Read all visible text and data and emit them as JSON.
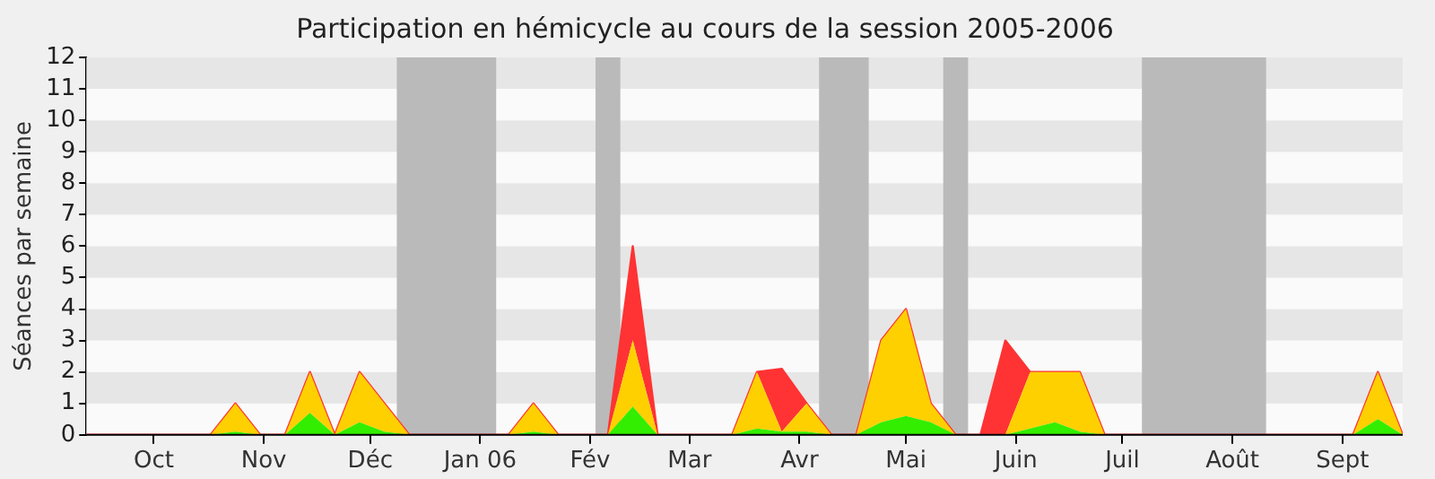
{
  "chart_data": {
    "type": "area",
    "title": "Participation en hémicycle au cours de la session 2005-2006",
    "ylabel": "Séances par semaine",
    "stacked": true,
    "legend": false,
    "x": [
      "2005-09-12",
      "2005-09-19",
      "2005-09-26",
      "2005-10-03",
      "2005-10-10",
      "2005-10-17",
      "2005-10-24",
      "2005-10-31",
      "2005-11-07",
      "2005-11-14",
      "2005-11-21",
      "2005-11-28",
      "2005-12-05",
      "2005-12-12",
      "2005-12-19",
      "2005-12-26",
      "2006-01-02",
      "2006-01-09",
      "2006-01-16",
      "2006-01-23",
      "2006-01-30",
      "2006-02-06",
      "2006-02-13",
      "2006-02-20",
      "2006-02-27",
      "2006-03-06",
      "2006-03-13",
      "2006-03-20",
      "2006-03-27",
      "2006-04-03",
      "2006-04-10",
      "2006-04-17",
      "2006-04-24",
      "2006-05-01",
      "2006-05-08",
      "2006-05-15",
      "2006-05-22",
      "2006-05-29",
      "2006-06-05",
      "2006-06-12",
      "2006-06-19",
      "2006-06-26",
      "2006-07-03",
      "2006-07-10",
      "2006-07-17",
      "2006-07-24",
      "2006-07-31",
      "2006-08-07",
      "2006-08-14",
      "2006-08-21",
      "2006-08-28",
      "2006-09-04",
      "2006-09-11",
      "2006-09-18"
    ],
    "series": [
      {
        "color": "#33ee00",
        "values": [
          0,
          0,
          0,
          0,
          0,
          0,
          0.1,
          0,
          0,
          0.7,
          0,
          0.4,
          0.1,
          0,
          0,
          0,
          0,
          0,
          0.1,
          0,
          0,
          0,
          0.9,
          0,
          0,
          0,
          0,
          0.2,
          0.1,
          0.1,
          0,
          0,
          0.4,
          0.6,
          0.4,
          0,
          0,
          0,
          0.2,
          0.4,
          0.1,
          0,
          0,
          0,
          0,
          0,
          0,
          0,
          0,
          0,
          0,
          0,
          0.5,
          0
        ]
      },
      {
        "color": "#ffd000",
        "values": [
          0,
          0,
          0,
          0,
          0,
          0,
          0.9,
          0,
          0,
          1.3,
          0,
          1.6,
          0.9,
          0,
          0,
          0,
          0,
          0,
          0.9,
          0,
          0,
          0,
          2.1,
          0,
          0,
          0,
          0,
          1.8,
          0,
          0.9,
          0,
          0,
          2.6,
          3.4,
          0.6,
          0,
          0,
          0,
          1.8,
          1.6,
          1.9,
          0,
          0,
          0,
          0,
          0,
          0,
          0,
          0,
          0,
          0,
          0,
          1.5,
          0
        ]
      },
      {
        "color": "#ff3333",
        "values": [
          0,
          0,
          0,
          0,
          0,
          0,
          0,
          0,
          0,
          0,
          0,
          0,
          0,
          0,
          0,
          0,
          0,
          0,
          0,
          0,
          0,
          0,
          3,
          0,
          0,
          0,
          0,
          0,
          2,
          0,
          0,
          0,
          0,
          0,
          0,
          0,
          0,
          3,
          0,
          0,
          0,
          0,
          0,
          0,
          0,
          0,
          0,
          0,
          0,
          0,
          0,
          0,
          0,
          0
        ]
      }
    ],
    "xlim": [
      "2005-09-12",
      "2006-09-18"
    ],
    "xticks": [
      {
        "value": "2005-10-01",
        "label": "Oct"
      },
      {
        "value": "2005-11-01",
        "label": "Nov"
      },
      {
        "value": "2005-12-01",
        "label": "Déc"
      },
      {
        "value": "2006-01-01",
        "label": "Jan 06"
      },
      {
        "value": "2006-02-01",
        "label": "Fév"
      },
      {
        "value": "2006-03-01",
        "label": "Mar"
      },
      {
        "value": "2006-04-01",
        "label": "Avr"
      },
      {
        "value": "2006-05-01",
        "label": "Mai"
      },
      {
        "value": "2006-06-01",
        "label": "Juin"
      },
      {
        "value": "2006-07-01",
        "label": "Juil"
      },
      {
        "value": "2006-08-01",
        "label": "Août"
      },
      {
        "value": "2006-09-01",
        "label": "Sept"
      }
    ],
    "ylim": [
      0,
      12
    ],
    "yticks": [
      0,
      1,
      2,
      3,
      4,
      5,
      6,
      7,
      8,
      9,
      10,
      11,
      12
    ],
    "bands": [
      {
        "axis": "x",
        "from": "2005-12-08T12:00",
        "to": "2006-01-05T12:00",
        "color": "#bababa"
      },
      {
        "axis": "x",
        "from": "2006-02-02T12:00",
        "to": "2006-02-09T12:00",
        "color": "#bababa"
      },
      {
        "axis": "x",
        "from": "2006-04-06T12:00",
        "to": "2006-04-20T12:00",
        "color": "#bababa"
      },
      {
        "axis": "x",
        "from": "2006-05-11T12:00",
        "to": "2006-05-18T12:00",
        "color": "#bababa"
      },
      {
        "axis": "x",
        "from": "2006-07-06T12:00",
        "to": "2006-08-10T12:00",
        "color": "#bababa"
      }
    ]
  }
}
